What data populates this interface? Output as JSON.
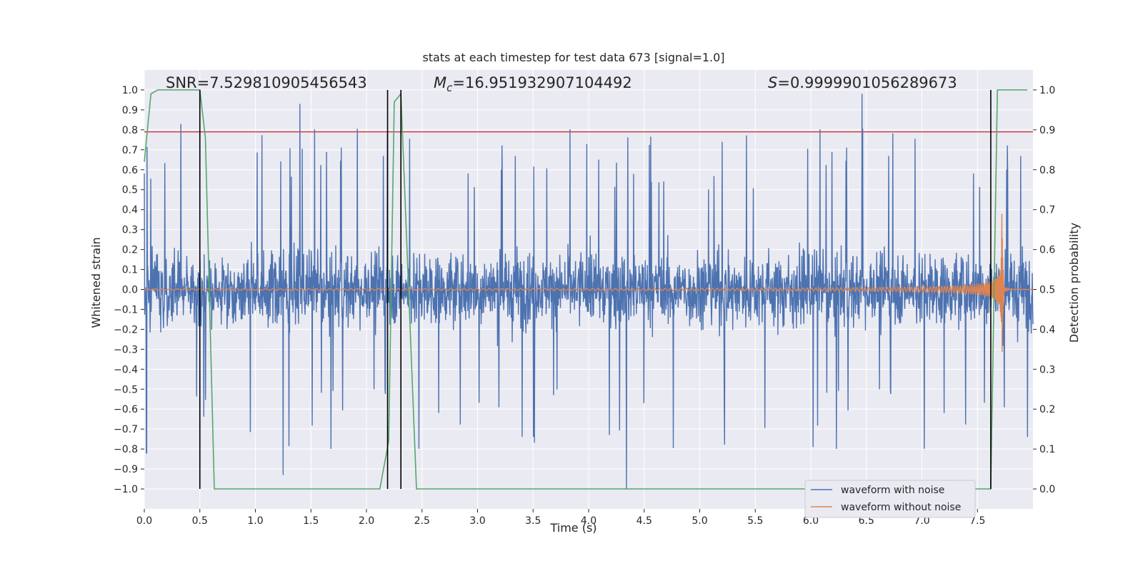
{
  "chart_data": {
    "type": "line",
    "title": "stats at each timestep for test data 673 [signal=1.0]",
    "xlabel": "Time (s)",
    "ylabel": "Whitened strain",
    "y2label": "Detection probability",
    "xlim": [
      0.0,
      8.0
    ],
    "ylim": [
      -1.1,
      1.1
    ],
    "y2lim": [
      -0.05,
      1.05
    ],
    "x_ticks": [
      0.0,
      0.5,
      1.0,
      1.5,
      2.0,
      2.5,
      3.0,
      3.5,
      4.0,
      4.5,
      5.0,
      5.5,
      6.0,
      6.5,
      7.0,
      7.5
    ],
    "x_tick_labels": [
      "0.0",
      "0.5",
      "1.0",
      "1.5",
      "2.0",
      "2.5",
      "3.0",
      "3.5",
      "4.0",
      "4.5",
      "5.0",
      "5.5",
      "6.0",
      "6.5",
      "7.0",
      "7.5"
    ],
    "y_ticks": [
      -1.0,
      -0.9,
      -0.8,
      -0.7,
      -0.6,
      -0.5,
      -0.4,
      -0.3,
      -0.2,
      -0.1,
      0.0,
      0.1,
      0.2,
      0.3,
      0.4,
      0.5,
      0.6,
      0.7,
      0.8,
      0.9,
      1.0
    ],
    "y_tick_labels": [
      "−1.0",
      "−0.9",
      "−0.8",
      "−0.7",
      "−0.6",
      "−0.5",
      "−0.4",
      "−0.3",
      "−0.2",
      "−0.1",
      "0.0",
      "0.1",
      "0.2",
      "0.3",
      "0.4",
      "0.5",
      "0.6",
      "0.7",
      "0.8",
      "0.9",
      "1.0"
    ],
    "y2_ticks": [
      0.0,
      0.1,
      0.2,
      0.3,
      0.4,
      0.5,
      0.6,
      0.7,
      0.8,
      0.9,
      1.0
    ],
    "y2_tick_labels": [
      "0.0",
      "0.1",
      "0.2",
      "0.3",
      "0.4",
      "0.5",
      "0.6",
      "0.7",
      "0.8",
      "0.9",
      "1.0"
    ],
    "annotations": {
      "snr": "SNR=7.529810905456543",
      "mc_symbol": "M",
      "mc_sub": "c",
      "mc_value": "=16.951932907104492",
      "s_symbol": "S",
      "s_value": "=0.9999901056289673"
    },
    "threshold_y": 0.79,
    "vertical_markers_x": [
      0.5,
      2.19,
      2.31,
      7.62
    ],
    "series": [
      {
        "name": "waveform with noise",
        "color": "#4c72b0",
        "x_range": [
          0.0,
          8.0
        ],
        "notable_spikes": [
          [
            0.02,
            -0.82
          ],
          [
            0.33,
            0.83
          ],
          [
            1.25,
            -0.93
          ],
          [
            1.4,
            0.93
          ],
          [
            4.34,
            -1.0
          ],
          [
            6.46,
            0.98
          ],
          [
            6.02,
            -0.79
          ]
        ]
      },
      {
        "name": "waveform without noise",
        "color": "#dd8452",
        "x_range": [
          0.0,
          8.0
        ],
        "merger_x": 7.72,
        "peak_amplitude": 0.42
      },
      {
        "name": "detection probability",
        "color": "#55a868",
        "axis": "right",
        "x": [
          0.0,
          0.06,
          0.12,
          0.5,
          0.55,
          0.63,
          2.12,
          2.2,
          2.25,
          2.31,
          2.45,
          7.62,
          7.68,
          7.95
        ],
        "values": [
          0.82,
          0.99,
          1.0,
          1.0,
          0.88,
          0.0,
          0.0,
          0.12,
          0.97,
          0.99,
          0.0,
          0.0,
          1.0,
          1.0
        ]
      }
    ],
    "legend": [
      "waveform with noise",
      "waveform without noise"
    ],
    "legend_position": "bottom-right",
    "colors": {
      "background": "#eaeaf2",
      "grid": "#ffffff",
      "threshold": "#c44e52",
      "markers": "#000000"
    }
  }
}
